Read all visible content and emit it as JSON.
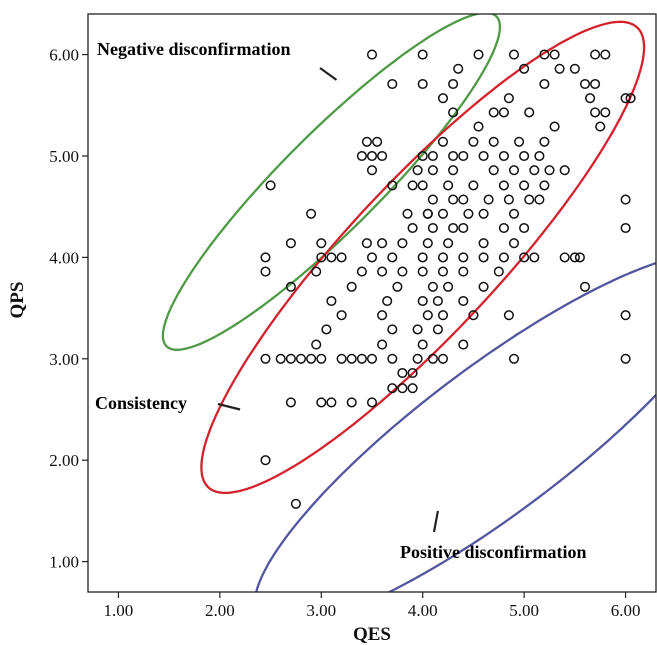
{
  "chart_data": {
    "type": "scatter",
    "title": "",
    "xlabel": "QES",
    "ylabel": "QPS",
    "xlim": [
      0.7,
      6.3
    ],
    "ylim": [
      0.7,
      6.4
    ],
    "x_ticks": [
      "1.00",
      "2.00",
      "3.00",
      "4.00",
      "5.00",
      "6.00"
    ],
    "y_ticks": [
      "1.00",
      "2.00",
      "3.00",
      "4.00",
      "5.00",
      "6.00"
    ],
    "grid": false,
    "legend": "none",
    "marker": "open-circle",
    "points": [
      [
        2.45,
        2.0
      ],
      [
        2.75,
        1.57
      ],
      [
        2.45,
        3.0
      ],
      [
        2.6,
        3.0
      ],
      [
        2.7,
        3.0
      ],
      [
        2.8,
        3.0
      ],
      [
        2.7,
        2.57
      ],
      [
        2.45,
        3.86
      ],
      [
        2.45,
        4.0
      ],
      [
        2.7,
        3.71
      ],
      [
        2.7,
        4.14
      ],
      [
        2.5,
        4.71
      ],
      [
        2.9,
        3.0
      ],
      [
        3.0,
        3.0
      ],
      [
        2.95,
        3.14
      ],
      [
        3.05,
        3.29
      ],
      [
        3.0,
        2.57
      ],
      [
        3.1,
        2.57
      ],
      [
        2.9,
        4.43
      ],
      [
        2.95,
        3.86
      ],
      [
        3.0,
        4.0
      ],
      [
        3.0,
        4.14
      ],
      [
        3.1,
        4.0
      ],
      [
        3.2,
        4.0
      ],
      [
        3.1,
        3.57
      ],
      [
        3.2,
        3.43
      ],
      [
        3.2,
        3.0
      ],
      [
        3.3,
        3.0
      ],
      [
        3.4,
        3.0
      ],
      [
        3.5,
        3.0
      ],
      [
        3.3,
        2.57
      ],
      [
        3.5,
        2.57
      ],
      [
        3.3,
        3.71
      ],
      [
        3.4,
        3.86
      ],
      [
        3.45,
        4.14
      ],
      [
        3.5,
        4.0
      ],
      [
        3.6,
        3.86
      ],
      [
        3.6,
        4.14
      ],
      [
        3.4,
        5.0
      ],
      [
        3.5,
        5.0
      ],
      [
        3.6,
        5.0
      ],
      [
        3.45,
        5.14
      ],
      [
        3.55,
        5.14
      ],
      [
        3.5,
        4.86
      ],
      [
        3.7,
        4.71
      ],
      [
        3.5,
        6.0
      ],
      [
        3.7,
        5.71
      ],
      [
        3.6,
        3.43
      ],
      [
        3.7,
        3.29
      ],
      [
        3.6,
        3.14
      ],
      [
        3.7,
        3.0
      ],
      [
        3.8,
        2.86
      ],
      [
        3.7,
        2.71
      ],
      [
        3.8,
        2.71
      ],
      [
        3.65,
        3.57
      ],
      [
        3.75,
        3.71
      ],
      [
        3.8,
        3.86
      ],
      [
        3.7,
        4.0
      ],
      [
        3.8,
        4.14
      ],
      [
        3.9,
        4.29
      ],
      [
        3.85,
        4.43
      ],
      [
        3.9,
        4.71
      ],
      [
        3.95,
        4.86
      ],
      [
        4.0,
        5.0
      ],
      [
        3.9,
        2.86
      ],
      [
        3.9,
        2.71
      ],
      [
        3.95,
        3.0
      ],
      [
        4.0,
        3.14
      ],
      [
        3.95,
        3.29
      ],
      [
        4.05,
        3.43
      ],
      [
        4.0,
        3.57
      ],
      [
        4.1,
        3.71
      ],
      [
        4.0,
        3.86
      ],
      [
        4.0,
        4.0
      ],
      [
        4.05,
        4.14
      ],
      [
        4.1,
        4.29
      ],
      [
        4.05,
        4.43
      ],
      [
        4.1,
        4.57
      ],
      [
        4.0,
        4.71
      ],
      [
        4.1,
        4.86
      ],
      [
        4.1,
        5.0
      ],
      [
        4.2,
        5.14
      ],
      [
        4.0,
        5.71
      ],
      [
        4.0,
        6.0
      ],
      [
        4.1,
        3.0
      ],
      [
        4.2,
        3.0
      ],
      [
        4.15,
        3.29
      ],
      [
        4.2,
        3.43
      ],
      [
        4.15,
        3.57
      ],
      [
        4.25,
        3.71
      ],
      [
        4.2,
        3.86
      ],
      [
        4.2,
        4.0
      ],
      [
        4.25,
        4.14
      ],
      [
        4.3,
        4.29
      ],
      [
        4.2,
        4.43
      ],
      [
        4.3,
        4.57
      ],
      [
        4.25,
        4.71
      ],
      [
        4.3,
        4.86
      ],
      [
        4.3,
        5.0
      ],
      [
        4.3,
        5.43
      ],
      [
        4.3,
        5.71
      ],
      [
        4.35,
        5.86
      ],
      [
        4.2,
        5.57
      ],
      [
        4.4,
        3.14
      ],
      [
        4.4,
        3.57
      ],
      [
        4.4,
        3.86
      ],
      [
        4.4,
        4.0
      ],
      [
        4.4,
        4.29
      ],
      [
        4.45,
        4.43
      ],
      [
        4.4,
        4.57
      ],
      [
        4.5,
        4.71
      ],
      [
        4.4,
        5.0
      ],
      [
        4.5,
        5.14
      ],
      [
        4.55,
        5.29
      ],
      [
        4.55,
        6.0
      ],
      [
        4.5,
        3.43
      ],
      [
        4.6,
        3.71
      ],
      [
        4.6,
        4.0
      ],
      [
        4.6,
        4.14
      ],
      [
        4.6,
        4.43
      ],
      [
        4.65,
        4.57
      ],
      [
        4.7,
        4.86
      ],
      [
        4.6,
        5.0
      ],
      [
        4.7,
        5.14
      ],
      [
        4.7,
        5.43
      ],
      [
        4.8,
        5.43
      ],
      [
        4.75,
        3.86
      ],
      [
        4.8,
        4.0
      ],
      [
        4.8,
        4.29
      ],
      [
        4.85,
        4.57
      ],
      [
        4.8,
        4.71
      ],
      [
        4.8,
        5.0
      ],
      [
        4.85,
        5.57
      ],
      [
        4.85,
        3.43
      ],
      [
        4.9,
        3.0
      ],
      [
        4.9,
        4.14
      ],
      [
        4.9,
        4.43
      ],
      [
        4.9,
        4.86
      ],
      [
        4.95,
        5.14
      ],
      [
        4.9,
        6.0
      ],
      [
        5.0,
        4.0
      ],
      [
        5.0,
        4.29
      ],
      [
        5.05,
        4.57
      ],
      [
        5.0,
        4.71
      ],
      [
        5.0,
        5.0
      ],
      [
        5.05,
        5.43
      ],
      [
        5.0,
        5.86
      ],
      [
        5.1,
        4.0
      ],
      [
        5.15,
        4.57
      ],
      [
        5.1,
        4.86
      ],
      [
        5.15,
        5.0
      ],
      [
        5.2,
        5.14
      ],
      [
        5.2,
        4.71
      ],
      [
        5.25,
        4.86
      ],
      [
        5.2,
        5.71
      ],
      [
        5.2,
        6.0
      ],
      [
        5.3,
        5.29
      ],
      [
        5.35,
        5.86
      ],
      [
        5.3,
        6.0
      ],
      [
        5.4,
        4.86
      ],
      [
        5.4,
        4.0
      ],
      [
        5.5,
        4.0
      ],
      [
        5.55,
        4.0
      ],
      [
        5.5,
        5.86
      ],
      [
        5.6,
        5.71
      ],
      [
        5.65,
        5.57
      ],
      [
        5.7,
        5.43
      ],
      [
        5.75,
        5.29
      ],
      [
        5.8,
        5.43
      ],
      [
        5.7,
        5.71
      ],
      [
        5.7,
        6.0
      ],
      [
        5.8,
        6.0
      ],
      [
        5.6,
        3.71
      ],
      [
        6.0,
        5.57
      ],
      [
        6.05,
        5.57
      ],
      [
        6.0,
        4.57
      ],
      [
        6.0,
        4.29
      ],
      [
        6.0,
        3.43
      ],
      [
        6.0,
        3.0
      ],
      [
        4.05,
        4.43
      ]
    ],
    "ellipses": [
      {
        "name": "negative",
        "center": [
          3.1,
          4.75
        ],
        "semi_major": 2.3,
        "semi_minor": 0.48,
        "angle_deg": 45,
        "color": "#4f9a47"
      },
      {
        "name": "consistency",
        "center": [
          4.0,
          4.0
        ],
        "semi_major": 3.1,
        "semi_minor": 0.74,
        "angle_deg": 47,
        "color": "#d3222d"
      },
      {
        "name": "positive",
        "center": [
          4.7,
          2.2
        ],
        "semi_major": 2.9,
        "semi_minor": 0.72,
        "angle_deg": 37,
        "color": "#53569f"
      }
    ],
    "annotations": [
      {
        "text": "Negative disconfirmation",
        "color": "#a3181d",
        "target": [
          3.15,
          5.75
        ]
      },
      {
        "text": "Consistency",
        "color": "#a3181d",
        "target": [
          2.2,
          2.5
        ]
      },
      {
        "text": "Positive disconfirmation",
        "color": "#a3181d",
        "target": [
          4.15,
          1.5
        ]
      }
    ]
  }
}
